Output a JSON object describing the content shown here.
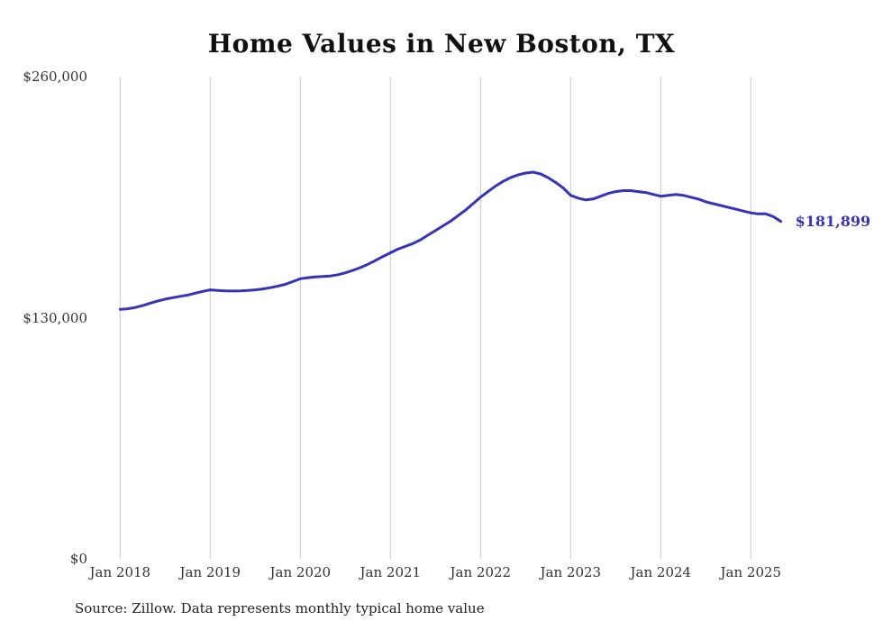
{
  "title": "Home Values in New Boston, TX",
  "source_note": "Source: Zillow. Data represents monthly typical home value",
  "end_label": "$181,899",
  "colors": {
    "line": "#3634b2",
    "grid": "#c9c9c9",
    "title": "#111111",
    "tick_text": "#333333"
  },
  "chart_data": {
    "type": "line",
    "title": "Home Values in New Boston, TX",
    "xlabel": "",
    "ylabel": "",
    "ylim": [
      0,
      260000
    ],
    "grid": "vertical-only",
    "legend": "none",
    "x_start_month": "Jan 2018",
    "x_end_month": "May 2025",
    "x_tick_labels": [
      "Jan 2018",
      "Jan 2019",
      "Jan 2020",
      "Jan 2021",
      "Jan 2022",
      "Jan 2023",
      "Jan 2024",
      "Jan 2025"
    ],
    "y_ticks": [
      {
        "value": 0,
        "label": "$0"
      },
      {
        "value": 130000,
        "label": "$130,000"
      },
      {
        "value": 260000,
        "label": "$260,000"
      }
    ],
    "final_value": 181899,
    "annotation": "$181,899",
    "series": [
      {
        "name": "Typical home value",
        "values": [
          134500,
          134800,
          135500,
          136500,
          137800,
          139000,
          140000,
          140800,
          141500,
          142200,
          143200,
          144200,
          145000,
          144700,
          144500,
          144400,
          144500,
          144700,
          145000,
          145500,
          146200,
          147000,
          148000,
          149500,
          151000,
          151600,
          152000,
          152200,
          152500,
          153200,
          154200,
          155500,
          157000,
          158800,
          160800,
          163000,
          165000,
          167000,
          168500,
          170000,
          172000,
          174500,
          177000,
          179500,
          182000,
          185000,
          188000,
          191500,
          195000,
          198000,
          201000,
          203500,
          205500,
          207000,
          208000,
          208500,
          207500,
          205500,
          203000,
          200000,
          196000,
          194500,
          193500,
          194000,
          195500,
          197000,
          198000,
          198500,
          198500,
          198000,
          197500,
          196500,
          195500,
          196000,
          196500,
          196000,
          195000,
          194000,
          192500,
          191500,
          190500,
          189500,
          188500,
          187500,
          186500,
          186000,
          186000,
          184500,
          181899
        ]
      }
    ]
  }
}
